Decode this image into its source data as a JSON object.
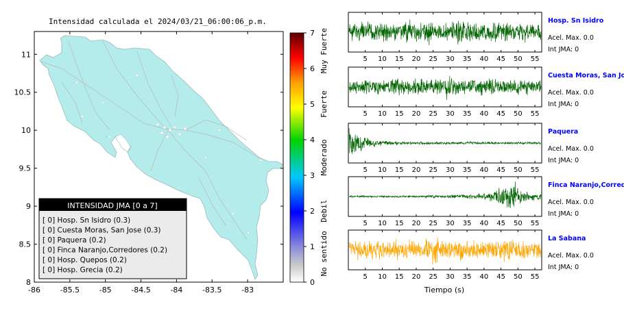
{
  "map": {
    "title": "Intensidad calculada el 2024/03/21_06:00:06_p.m.",
    "x_ticks": [
      "-86",
      "-85.5",
      "-85",
      "-84.5",
      "-84",
      "-83.5",
      "-83"
    ],
    "y_ticks": [
      "11",
      "10.5",
      "10",
      "9.5",
      "9",
      "8.5",
      "8"
    ],
    "xlim": [
      -86,
      -82.5
    ],
    "ylim": [
      8,
      11.3
    ],
    "land_color": "#b4ecec",
    "legend": {
      "title": "INTENSIDAD JMA [0 a 7]",
      "items": [
        "[ 0]  Hosp. Sn Isidro (0.3)",
        "[ 0]  Cuesta Moras, San Jose (0.3)",
        "[ 0]  Paquera (0.2)",
        "[ 0]  Finca Naranjo,Corredores (0.2)",
        "[ 0]  Hosp. Quepos (0.2)",
        "[ 0]  Hosp. Grecia (0.2)"
      ]
    }
  },
  "colorbar": {
    "ticks": [
      "7",
      "6",
      "5",
      "4",
      "3",
      "2",
      "1",
      "0"
    ],
    "labels": [
      "Muy Fuerte",
      "Fuerte",
      "Moderado",
      "Debil",
      "No sentido"
    ],
    "range": [
      0,
      7
    ]
  },
  "chart_data": [
    {
      "type": "line",
      "title": "Hosp. Sn Isidro",
      "accel_label": "Acel. Max. 0.0",
      "jma_label": "Int JMA: 0",
      "color": "#006400",
      "xlim": [
        0,
        57
      ],
      "x_ticks": [
        5,
        10,
        15,
        20,
        25,
        30,
        35,
        40,
        45,
        50,
        55
      ],
      "envelope": [
        0.55,
        0.6,
        0.7,
        0.6,
        0.65,
        0.7,
        0.6,
        0.55,
        0.65,
        0.7,
        0.6,
        0.65,
        0.75,
        0.6,
        0.55,
        0.6,
        0.7,
        0.8,
        0.6,
        0.55,
        0.6,
        0.65,
        0.7,
        0.6,
        0.55,
        0.6,
        0.65,
        0.6,
        0.55,
        0.5
      ]
    },
    {
      "type": "line",
      "title": "Cuesta Moras, San Jose",
      "accel_label": "Acel. Max. 0.0",
      "jma_label": "Int JMA: 0",
      "color": "#006400",
      "xlim": [
        0,
        57
      ],
      "x_ticks": [
        5,
        10,
        15,
        20,
        25,
        30,
        35,
        40,
        45,
        50,
        55
      ],
      "envelope": [
        0.4,
        0.45,
        0.5,
        0.45,
        0.5,
        0.45,
        0.5,
        0.55,
        0.5,
        0.45,
        0.5,
        0.5,
        0.45,
        0.5,
        0.55,
        0.8,
        0.6,
        0.5,
        0.45,
        0.5,
        0.55,
        0.5,
        0.6,
        0.5,
        0.45,
        0.5,
        0.45,
        0.5,
        0.45,
        0.4
      ]
    },
    {
      "type": "line",
      "title": "Paquera",
      "accel_label": "Acel. Max. 0.0",
      "jma_label": "Int JMA: 0",
      "color": "#006400",
      "xlim": [
        0,
        57
      ],
      "x_ticks": [
        5,
        10,
        15,
        20,
        25,
        30,
        35,
        40,
        45,
        50,
        55
      ],
      "envelope": [
        0.9,
        0.55,
        0.35,
        0.25,
        0.18,
        0.14,
        0.12,
        0.1,
        0.1,
        0.09,
        0.09,
        0.09,
        0.09,
        0.09,
        0.08,
        0.08,
        0.08,
        0.08,
        0.08,
        0.08,
        0.08,
        0.08,
        0.08,
        0.08,
        0.08,
        0.08,
        0.08,
        0.08,
        0.08,
        0.08
      ]
    },
    {
      "type": "line",
      "title": "Finca Naranjo,Corredores",
      "accel_label": "Acel. Max. 0.0",
      "jma_label": "Int JMA: 0",
      "color": "#006400",
      "xlim": [
        0,
        57
      ],
      "x_ticks": [
        5,
        10,
        15,
        20,
        25,
        30,
        35,
        40,
        45,
        50,
        55
      ],
      "envelope": [
        0.06,
        0.06,
        0.06,
        0.06,
        0.06,
        0.06,
        0.07,
        0.06,
        0.06,
        0.06,
        0.06,
        0.06,
        0.08,
        0.08,
        0.08,
        0.1,
        0.12,
        0.12,
        0.14,
        0.16,
        0.2,
        0.25,
        0.35,
        0.5,
        0.8,
        0.95,
        0.6,
        0.35,
        0.25,
        0.2
      ]
    },
    {
      "type": "line",
      "title": "La Sabana",
      "accel_label": "Acel. Max. 0.0",
      "jma_label": "Int JMA: 0",
      "color": "#ffa500",
      "xlim": [
        0,
        57
      ],
      "x_ticks": [
        5,
        10,
        15,
        20,
        25,
        30,
        35,
        40,
        45,
        50,
        55
      ],
      "xlabel": "Tiempo (s)",
      "envelope": [
        0.55,
        0.6,
        0.55,
        0.6,
        0.65,
        0.6,
        0.55,
        0.7,
        0.6,
        0.65,
        0.6,
        0.55,
        0.8,
        0.9,
        0.6,
        0.55,
        0.6,
        0.65,
        0.6,
        0.55,
        0.6,
        0.65,
        0.6,
        0.55,
        0.7,
        0.6,
        0.55,
        0.6,
        0.55,
        0.5
      ]
    }
  ]
}
